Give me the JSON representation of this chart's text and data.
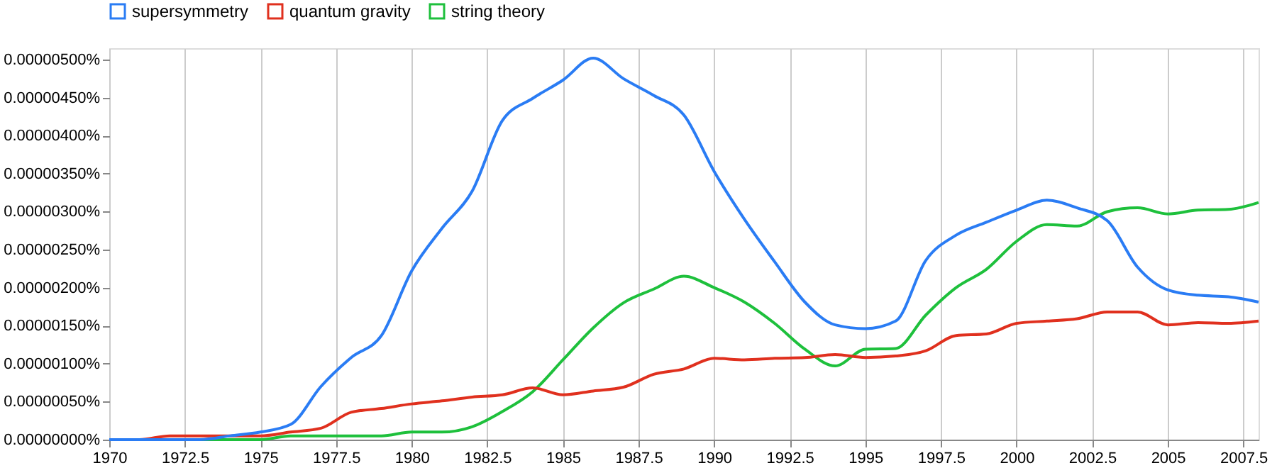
{
  "chart_data": {
    "type": "line",
    "x": [
      1970,
      1971,
      1972,
      1973,
      1974,
      1975,
      1976,
      1977,
      1978,
      1979,
      1980,
      1981,
      1982,
      1983,
      1984,
      1985,
      1986,
      1987,
      1988,
      1989,
      1990,
      1991,
      1992,
      1993,
      1994,
      1995,
      1996,
      1997,
      1998,
      1999,
      2000,
      2001,
      2002,
      2003,
      2004,
      2005,
      2006,
      2007,
      2008
    ],
    "series": [
      {
        "name": "supersymmetry",
        "color": "#2a7cf4",
        "values": [
          0,
          0,
          0,
          0,
          5e-08,
          1e-07,
          2e-07,
          7e-07,
          1.08e-06,
          1.37e-06,
          2.22e-06,
          2.78e-06,
          3.27e-06,
          4.2e-06,
          4.49e-06,
          4.73e-06,
          5.02e-06,
          4.75e-06,
          4.53e-06,
          4.27e-06,
          3.53e-06,
          2.9e-06,
          2.34e-06,
          1.81e-06,
          1.51e-06,
          1.46e-06,
          1.56e-06,
          2.36e-06,
          2.69e-06,
          2.86e-06,
          3.02e-06,
          3.15e-06,
          3.05e-06,
          2.88e-06,
          2.27e-06,
          1.97e-06,
          1.9e-06,
          1.88e-06,
          1.81e-06
        ]
      },
      {
        "name": "quantum gravity",
        "color": "#e0301e",
        "values": [
          0,
          0,
          5e-08,
          5e-08,
          5e-08,
          5e-08,
          1e-07,
          1.5e-07,
          3.6e-07,
          4.1e-07,
          4.7e-07,
          5.1e-07,
          5.6e-07,
          5.9e-07,
          6.8e-07,
          5.9e-07,
          6.4e-07,
          6.9e-07,
          8.6e-07,
          9.3e-07,
          1.07e-06,
          1.05e-06,
          1.07e-06,
          1.08e-06,
          1.12e-06,
          1.08e-06,
          1.1e-06,
          1.17e-06,
          1.37e-06,
          1.39e-06,
          1.53e-06,
          1.56e-06,
          1.59e-06,
          1.68e-06,
          1.68e-06,
          1.51e-06,
          1.54e-06,
          1.53e-06,
          1.56e-06
        ]
      },
      {
        "name": "string theory",
        "color": "#1ec03c",
        "values": [
          null,
          null,
          0,
          0,
          0,
          0,
          5e-08,
          5e-08,
          5e-08,
          5e-08,
          1e-07,
          1e-07,
          1.7e-07,
          3.7e-07,
          6.3e-07,
          1.05e-06,
          1.47e-06,
          1.8e-06,
          1.98e-06,
          2.15e-06,
          2e-06,
          1.81e-06,
          1.53e-06,
          1.19e-06,
          9.7e-07,
          1.19e-06,
          1.2e-06,
          1.64e-06,
          2e-06,
          2.24e-06,
          2.61e-06,
          2.83e-06,
          2.81e-06,
          3e-06,
          3.05e-06,
          2.97e-06,
          3.02e-06,
          3.03e-06,
          3.12e-06
        ]
      }
    ],
    "xlim": [
      1970,
      2008
    ],
    "xticks": [
      1970,
      1972.5,
      1975,
      1977.5,
      1980,
      1982.5,
      1985,
      1987.5,
      1990,
      1992.5,
      1995,
      1997.5,
      2000,
      2002.5,
      2005,
      2007.5
    ],
    "ylim": [
      0,
      5.15e-06
    ],
    "yticks": [
      {
        "value": 0,
        "label": "0.00000000%"
      },
      {
        "value": 5e-07,
        "label": "0.00000050%"
      },
      {
        "value": 1e-06,
        "label": "0.00000100%"
      },
      {
        "value": 1.5e-06,
        "label": "0.00000150%"
      },
      {
        "value": 2e-06,
        "label": "0.00000200%"
      },
      {
        "value": 2.5e-06,
        "label": "0.00000250%"
      },
      {
        "value": 3e-06,
        "label": "0.00000300%"
      },
      {
        "value": 3.5e-06,
        "label": "0.00000350%"
      },
      {
        "value": 4e-06,
        "label": "0.00000400%"
      },
      {
        "value": 4.5e-06,
        "label": "0.00000450%"
      },
      {
        "value": 5e-06,
        "label": "0.00000500%"
      }
    ],
    "grid": "x",
    "legend": "top",
    "marker": "none",
    "line_style": "solid"
  }
}
